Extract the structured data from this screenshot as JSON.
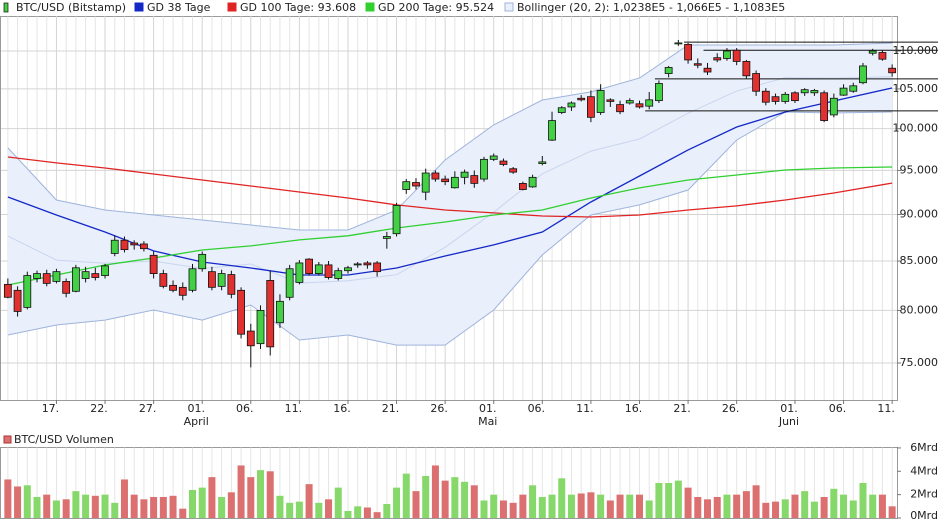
{
  "chart_data": [
    {
      "type": "candlestick",
      "log": true,
      "grid": true,
      "ylim": [
        71670,
        114830
      ],
      "yticks": [
        {
          "value": 75000,
          "label": "75.000"
        },
        {
          "value": 80000,
          "label": "80.000"
        },
        {
          "value": 85000,
          "label": "85.000"
        },
        {
          "value": 90000,
          "label": "90.000"
        },
        {
          "value": 95000,
          "label": "95.000"
        },
        {
          "value": 100000,
          "label": "100.000"
        },
        {
          "value": 105000,
          "label": "105.000"
        },
        {
          "value": 110000,
          "label": "110.000"
        }
      ],
      "categories": [
        null,
        null,
        null,
        null,
        null,
        "17.",
        null,
        null,
        null,
        null,
        "22.",
        null,
        null,
        null,
        null,
        "27.",
        null,
        null,
        null,
        null,
        "01.",
        null,
        null,
        null,
        null,
        "06.",
        null,
        null,
        null,
        null,
        "11.",
        null,
        null,
        null,
        null,
        "16.",
        null,
        null,
        null,
        null,
        "21.",
        null,
        null,
        null,
        null,
        "26.",
        null,
        null,
        null,
        null,
        "01.",
        null,
        null,
        null,
        null,
        "06.",
        null,
        null,
        null,
        null,
        "11.",
        null,
        null,
        null,
        null,
        "16.",
        null,
        null,
        null,
        null,
        "21.",
        null,
        null,
        null,
        null,
        "26.",
        null,
        null,
        null,
        null,
        null,
        "01.",
        null,
        null,
        null,
        null,
        "06.",
        null,
        null,
        null,
        null,
        "11."
      ],
      "month_labels": [
        {
          "label": "April",
          "index": 20
        },
        {
          "label": "Mai",
          "index": 50
        },
        {
          "label": "Juni",
          "index": 81
        }
      ],
      "series": [
        {
          "name": "BTC/USD (Bitstamp)",
          "up_color": "#44d044",
          "down_color": "#e03030",
          "ohlc": [
            [
              82600,
              83200,
              81200,
              81300
            ],
            [
              82000,
              82400,
              79400,
              79900
            ],
            [
              80300,
              83900,
              80100,
              83500
            ],
            [
              83200,
              84000,
              82800,
              83700
            ],
            [
              83700,
              84100,
              82400,
              82700
            ],
            [
              82900,
              84200,
              82700,
              83900
            ],
            [
              82900,
              83200,
              81300,
              81700
            ],
            [
              81900,
              84600,
              81800,
              84300
            ],
            [
              83200,
              84400,
              82800,
              83900
            ],
            [
              83700,
              84300,
              83000,
              83300
            ],
            [
              83500,
              84700,
              83200,
              84500
            ],
            [
              85800,
              87700,
              85500,
              87200
            ],
            [
              87200,
              87600,
              85900,
              86200
            ],
            [
              86900,
              87200,
              86200,
              86700
            ],
            [
              86800,
              87100,
              86000,
              86300
            ],
            [
              85600,
              86000,
              83200,
              83700
            ],
            [
              83700,
              84100,
              82200,
              82400
            ],
            [
              82500,
              83000,
              81800,
              82000
            ],
            [
              82300,
              82800,
              81000,
              81500
            ],
            [
              82000,
              84700,
              81800,
              84200
            ],
            [
              84200,
              86000,
              83900,
              85700
            ],
            [
              83900,
              84400,
              82000,
              82300
            ],
            [
              82400,
              84100,
              82000,
              83700
            ],
            [
              83600,
              84000,
              81200,
              81600
            ],
            [
              82000,
              82300,
              77300,
              77700
            ],
            [
              78000,
              78700,
              74600,
              76600
            ],
            [
              76800,
              80500,
              76300,
              80000
            ],
            [
              83000,
              84000,
              75700,
              76500
            ],
            [
              78800,
              81600,
              78300,
              80900
            ],
            [
              81300,
              84600,
              81000,
              84200
            ],
            [
              82800,
              85100,
              82600,
              84800
            ],
            [
              85200,
              85300,
              83500,
              83700
            ],
            [
              83700,
              84900,
              83500,
              84600
            ],
            [
              84600,
              85000,
              83100,
              83300
            ],
            [
              83200,
              84300,
              83000,
              84000
            ],
            [
              84000,
              84500,
              83700,
              84300
            ],
            [
              84600,
              84900,
              84300,
              84700
            ],
            [
              84800,
              85000,
              84200,
              84600
            ],
            [
              84800,
              85000,
              83400,
              83900
            ],
            [
              87400,
              88100,
              86300,
              87600
            ],
            [
              87900,
              91300,
              87600,
              91000
            ],
            [
              92800,
              94000,
              92300,
              93700
            ],
            [
              93600,
              94100,
              92800,
              93200
            ],
            [
              92500,
              95200,
              91600,
              94700
            ],
            [
              94700,
              95000,
              93700,
              94000
            ],
            [
              94000,
              94400,
              93300,
              93700
            ],
            [
              93000,
              94900,
              92900,
              94200
            ],
            [
              94200,
              95100,
              93400,
              94800
            ],
            [
              94400,
              95000,
              93000,
              93500
            ],
            [
              94000,
              96600,
              93700,
              96300
            ],
            [
              96300,
              97000,
              96100,
              96700
            ],
            [
              96100,
              96400,
              95500,
              95700
            ],
            [
              95200,
              95400,
              94600,
              94800
            ],
            [
              93500,
              93700,
              92700,
              92800
            ],
            [
              93100,
              94500,
              93000,
              94200
            ],
            [
              95800,
              96700,
              95600,
              96000
            ],
            [
              98600,
              102100,
              98500,
              101000
            ],
            [
              102000,
              102800,
              101800,
              102600
            ],
            [
              102700,
              103400,
              102200,
              103200
            ],
            [
              103800,
              104200,
              103400,
              103600
            ],
            [
              104000,
              104800,
              100800,
              101400
            ],
            [
              102000,
              105600,
              101700,
              104800
            ],
            [
              103600,
              103800,
              102700,
              103400
            ],
            [
              103000,
              103500,
              101800,
              102100
            ],
            [
              103200,
              103800,
              103000,
              103500
            ],
            [
              103100,
              103500,
              102500,
              102700
            ],
            [
              102800,
              104600,
              102400,
              103600
            ],
            [
              103500,
              106100,
              103200,
              105700
            ],
            [
              107000,
              108000,
              106500,
              107800
            ],
            [
              111100,
              111500,
              110700,
              111100
            ],
            [
              110900,
              111100,
              108300,
              108800
            ],
            [
              108300,
              109000,
              107700,
              108100
            ],
            [
              107700,
              108400,
              106800,
              107200
            ],
            [
              109100,
              109700,
              108500,
              108800
            ],
            [
              109000,
              110400,
              108700,
              110000
            ],
            [
              110100,
              110400,
              108100,
              108600
            ],
            [
              108600,
              108800,
              106300,
              106700
            ],
            [
              107000,
              107400,
              104100,
              104700
            ],
            [
              104700,
              105100,
              102900,
              103300
            ],
            [
              104000,
              104400,
              103000,
              103400
            ],
            [
              103400,
              104600,
              103100,
              104300
            ],
            [
              104500,
              104700,
              103200,
              103500
            ],
            [
              104500,
              105100,
              104100,
              104900
            ],
            [
              104500,
              105000,
              104100,
              104800
            ],
            [
              104500,
              104800,
              100800,
              101000
            ],
            [
              101700,
              104400,
              101400,
              103800
            ],
            [
              104200,
              105600,
              104100,
              105100
            ],
            [
              104700,
              105800,
              104500,
              105400
            ],
            [
              105800,
              108400,
              105600,
              108000
            ],
            [
              109700,
              110300,
              109400,
              110000
            ],
            [
              109800,
              110100,
              108700,
              108900
            ],
            [
              107700,
              108200,
              106600,
              107100
            ]
          ]
        }
      ],
      "bollinger": {
        "name": "Bollinger (20, 2): 1,0238E5 - 1,066E5 - 1,1083E5",
        "color": "#9fb4dc",
        "fill": "#e9effb",
        "x": [
          0,
          5,
          10,
          15,
          20,
          25,
          30,
          35,
          40,
          45,
          50,
          55,
          60,
          65,
          70,
          75,
          80,
          85,
          91
        ],
        "upper": [
          97660,
          91610,
          90500,
          89940,
          89390,
          88840,
          88300,
          88300,
          90500,
          96230,
          100460,
          103580,
          104610,
          106420,
          110820,
          110820,
          110820,
          110820,
          111090
        ],
        "middle": [
          87640,
          85100,
          84780,
          84990,
          84230,
          84690,
          82730,
          82960,
          83590,
          86450,
          90250,
          94610,
          97280,
          98740,
          101910,
          104720,
          106450,
          106380,
          106590
        ],
        "lower": [
          77620,
          78580,
          79060,
          80040,
          79060,
          80530,
          77150,
          77620,
          76670,
          76670,
          80040,
          85640,
          89940,
          91060,
          92750,
          98620,
          102070,
          101940,
          102070
        ]
      },
      "lines": [
        {
          "name": "GD 38 Tage",
          "color": "#1428c8",
          "x": [
            0,
            5,
            10,
            15,
            20,
            25,
            30,
            35,
            40,
            45,
            50,
            55,
            60,
            65,
            70,
            75,
            80,
            85,
            91
          ],
          "values": [
            91950,
            89940,
            88090,
            86060,
            84900,
            84280,
            83560,
            83560,
            84280,
            85530,
            86700,
            88090,
            91390,
            94350,
            97420,
            100200,
            102070,
            103450,
            105120
          ]
        },
        {
          "name": "GD 100 Tage: 93.608",
          "color": "#e02424",
          "x": [
            0,
            5,
            10,
            15,
            20,
            25,
            30,
            35,
            40,
            45,
            50,
            55,
            60,
            65,
            70,
            75,
            80,
            85,
            91
          ],
          "values": [
            96580,
            95880,
            95290,
            94590,
            93890,
            93200,
            92520,
            91840,
            91060,
            90500,
            90170,
            89830,
            89720,
            89940,
            90500,
            90950,
            91610,
            92410,
            93540
          ]
        },
        {
          "name": "GD 200 Tage: 95.524",
          "color": "#30d030",
          "x": [
            0,
            5,
            10,
            15,
            20,
            25,
            30,
            35,
            40,
            45,
            50,
            55,
            60,
            65,
            70,
            75,
            80,
            85,
            91
          ],
          "values": [
            82540,
            83560,
            84590,
            85320,
            86160,
            86590,
            87230,
            87670,
            88520,
            89170,
            89940,
            90500,
            91840,
            92980,
            93890,
            94470,
            95050,
            95290,
            95400
          ]
        }
      ],
      "hlines": [
        {
          "value": 111200,
          "from": 70
        },
        {
          "value": 110100,
          "from": 72
        },
        {
          "value": 106300,
          "from": 67
        },
        {
          "value": 102200,
          "from": 66
        }
      ]
    },
    {
      "type": "bar",
      "title": "BTC/USD Volumen",
      "ylim": [
        0,
        6.08
      ],
      "yticks": [
        {
          "value": 0,
          "label": "0Mrd"
        },
        {
          "value": 2,
          "label": "2Mrd"
        },
        {
          "value": 4,
          "label": "4Mrd"
        },
        {
          "value": 6,
          "label": "6Mrd"
        }
      ],
      "up_color": "#86d86a",
      "down_color": "#dc7070",
      "values": [
        3.3,
        2.7,
        2.8,
        1.8,
        2.0,
        1.5,
        1.6,
        2.3,
        2.0,
        1.9,
        2.0,
        1.3,
        3.3,
        2.0,
        1.6,
        1.8,
        1.8,
        1.9,
        0.8,
        2.4,
        2.6,
        3.5,
        1.8,
        2.2,
        4.5,
        3.5,
        4.1,
        4.0,
        1.9,
        1.3,
        1.4,
        2.9,
        1.3,
        1.6,
        2.6,
        0.6,
        1.0,
        0.9,
        0.5,
        1.2,
        2.6,
        3.8,
        2.3,
        3.6,
        4.5,
        3.2,
        3.5,
        3.1,
        2.8,
        1.5,
        2.0,
        1.5,
        1.3,
        2.0,
        2.8,
        1.8,
        2.0,
        3.4,
        2.0,
        2.1,
        2.2,
        2.0,
        1.5,
        2.0,
        2.0,
        2.0,
        1.5,
        3.0,
        3.0,
        3.2,
        2.6,
        1.8,
        1.6,
        1.8,
        2.0,
        2.0,
        2.3,
        2.8,
        1.3,
        1.4,
        1.6,
        2.0,
        2.3,
        1.4,
        1.8,
        2.5,
        2.0,
        1.5,
        3.0,
        2.0,
        2.0,
        1.0
      ]
    }
  ]
}
